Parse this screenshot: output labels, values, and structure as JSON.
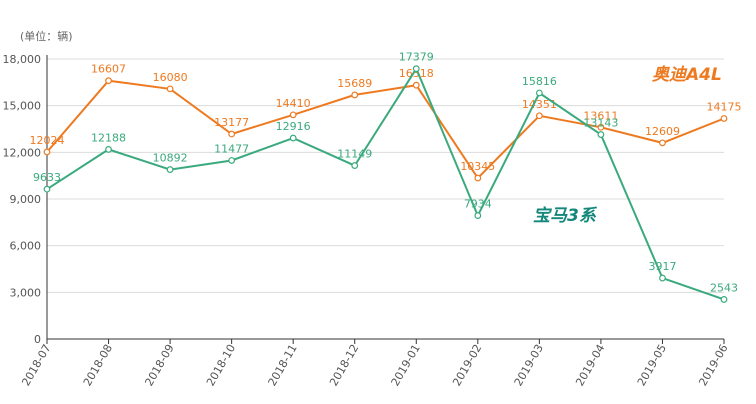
{
  "colors": {
    "audi": "#ee7a20",
    "bmw": "#3aaa7e",
    "bmw_label": "#12877a",
    "grid": "#dcdcdc",
    "axis": "#333333",
    "text": "#555555"
  },
  "chart_data": {
    "type": "line",
    "unit_label": "(单位：辆)",
    "categories": [
      "2018-07",
      "2018-08",
      "2018-09",
      "2018-10",
      "2018-11",
      "2018-12",
      "2019-01",
      "2019-02",
      "2019-03",
      "2019-04",
      "2019-05",
      "2019-06"
    ],
    "ylim": [
      0,
      18000
    ],
    "yticks": [
      "0",
      "3,000",
      "6,000",
      "9,000",
      "12,000",
      "15,000",
      "18,000"
    ],
    "grid": true,
    "series": [
      {
        "name": "奥迪A4L",
        "key": "audi",
        "values": [
          12024,
          16607,
          16080,
          13177,
          14410,
          15689,
          16318,
          10345,
          14351,
          13611,
          12609,
          14175
        ]
      },
      {
        "name": "宝马3系",
        "key": "bmw",
        "values": [
          9633,
          12188,
          10892,
          11477,
          12916,
          11149,
          17379,
          7934,
          15816,
          13143,
          3917,
          2543
        ]
      }
    ]
  }
}
